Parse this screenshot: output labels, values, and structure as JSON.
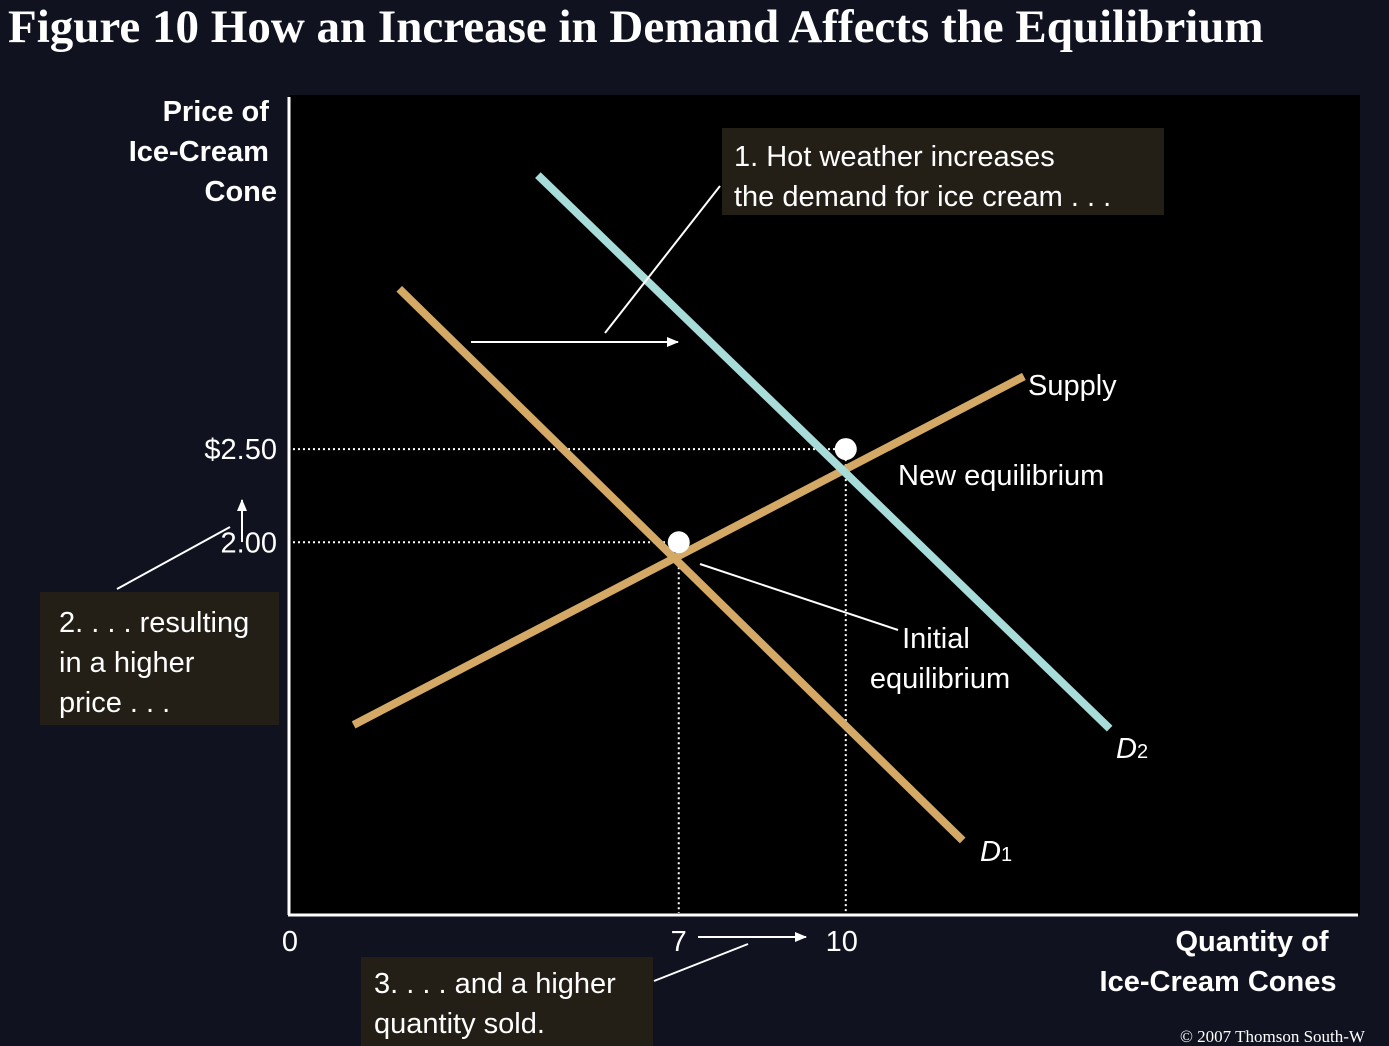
{
  "title": "Figure 10 How an Increase in Demand Affects the Equilibrium",
  "copyright": "© 2007 Thomson South-W",
  "colors": {
    "background": "#10131f",
    "plot_area": "#000000",
    "demand_1": "#d4a865",
    "supply": "#d4a865",
    "demand_2": "#a8dcd9",
    "annotation_box": "#231e16"
  },
  "annotations": {
    "a1": [
      "1. Hot weather increases",
      "the demand for ice cream . . ."
    ],
    "a2": [
      "2. . . . resulting",
      "in a higher",
      "price . . ."
    ],
    "a3": [
      "3. . . . and a higher",
      "quantity sold."
    ]
  },
  "chart_data": {
    "type": "line",
    "title": "Figure 10 How an Increase in Demand Affects the Equilibrium",
    "xlabel": [
      "Quantity of",
      "Ice-Cream Cones"
    ],
    "ylabel": [
      "Price of",
      "Ice-Cream",
      "Cone"
    ],
    "x_ticks": [
      {
        "value": 0,
        "label": "0"
      },
      {
        "value": 7,
        "label": "7"
      },
      {
        "value": 10,
        "label": "10"
      }
    ],
    "y_ticks": [
      {
        "value": 2.0,
        "label": "2.00"
      },
      {
        "value": 2.5,
        "label": "$2.50"
      }
    ],
    "xlim": [
      0,
      19.2
    ],
    "ylim": [
      0,
      4.4
    ],
    "grid": false,
    "legend": "none",
    "series": [
      {
        "name": "Supply",
        "points": [
          [
            1.16,
            1.02
          ],
          [
            13.2,
            2.89
          ]
        ]
      },
      {
        "name": "D",
        "subscript": "1",
        "points": [
          [
            1.98,
            3.36
          ],
          [
            12.1,
            0.4
          ]
        ]
      },
      {
        "name": "D",
        "subscript": "2",
        "points": [
          [
            4.47,
            3.97
          ],
          [
            14.74,
            1.0
          ]
        ]
      }
    ],
    "equilibria": [
      {
        "name": "Initial equilibrium",
        "label": [
          "Initial",
          "equilibrium"
        ],
        "x": 7,
        "y": 2.0
      },
      {
        "name": "New equilibrium",
        "label": [
          "New equilibrium"
        ],
        "x": 10,
        "y": 2.5
      }
    ]
  }
}
